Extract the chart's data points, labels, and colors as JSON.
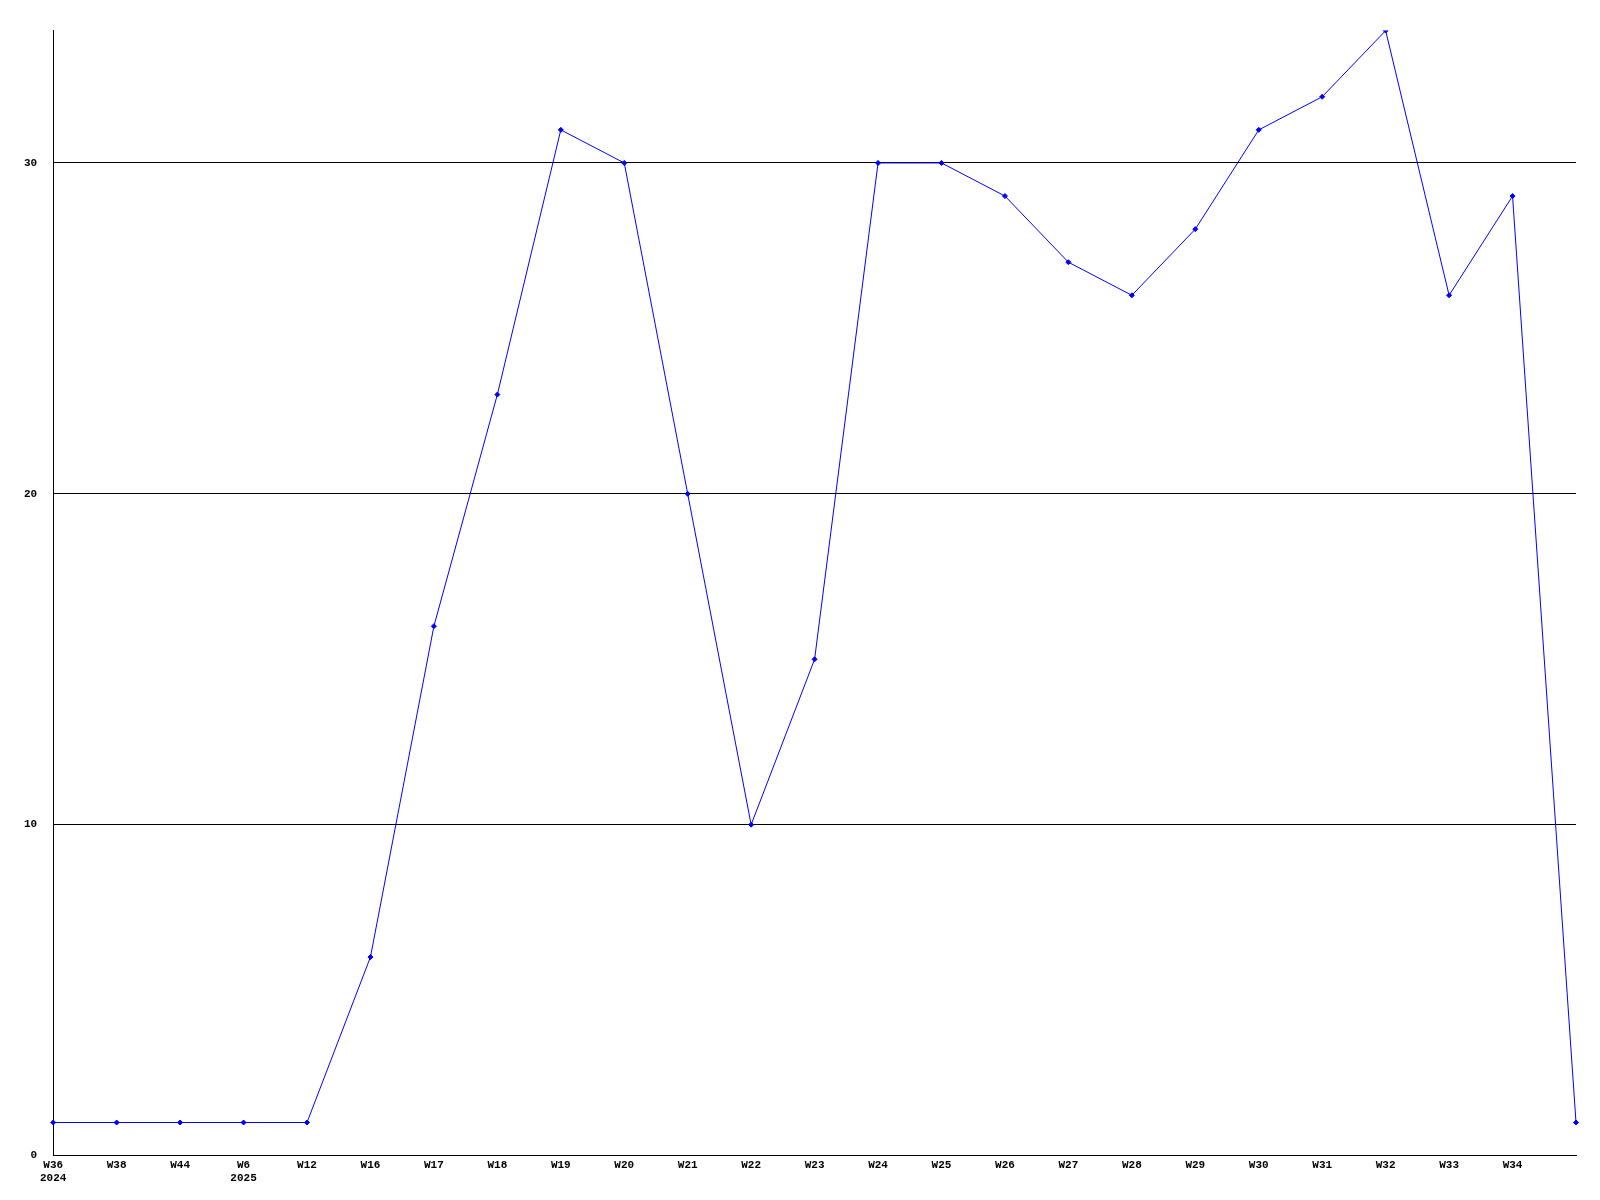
{
  "chart_data": {
    "type": "line",
    "categories": [
      "W36\n2024",
      "W38",
      "W44",
      "W6\n2025",
      "W12",
      "W16",
      "W17",
      "W18",
      "W19",
      "W20",
      "W21",
      "W22",
      "W23",
      "W24",
      "W25",
      "W26",
      "W27",
      "W28",
      "W29",
      "W30",
      "W31",
      "W32",
      "W33",
      "W34",
      null
    ],
    "series": [
      {
        "color": "#0000ff",
        "values": [
          1,
          1,
          1,
          1,
          1,
          6,
          16,
          23,
          31,
          30,
          20,
          10,
          15,
          30,
          30,
          29,
          27,
          26,
          28,
          31,
          32,
          34,
          26,
          29,
          1
        ]
      }
    ],
    "ylim": [
      0,
      34
    ],
    "yticks": [
      0,
      10,
      20,
      30
    ],
    "grid": "y",
    "legend": false,
    "marker": "diamond",
    "line_style": "solid"
  }
}
